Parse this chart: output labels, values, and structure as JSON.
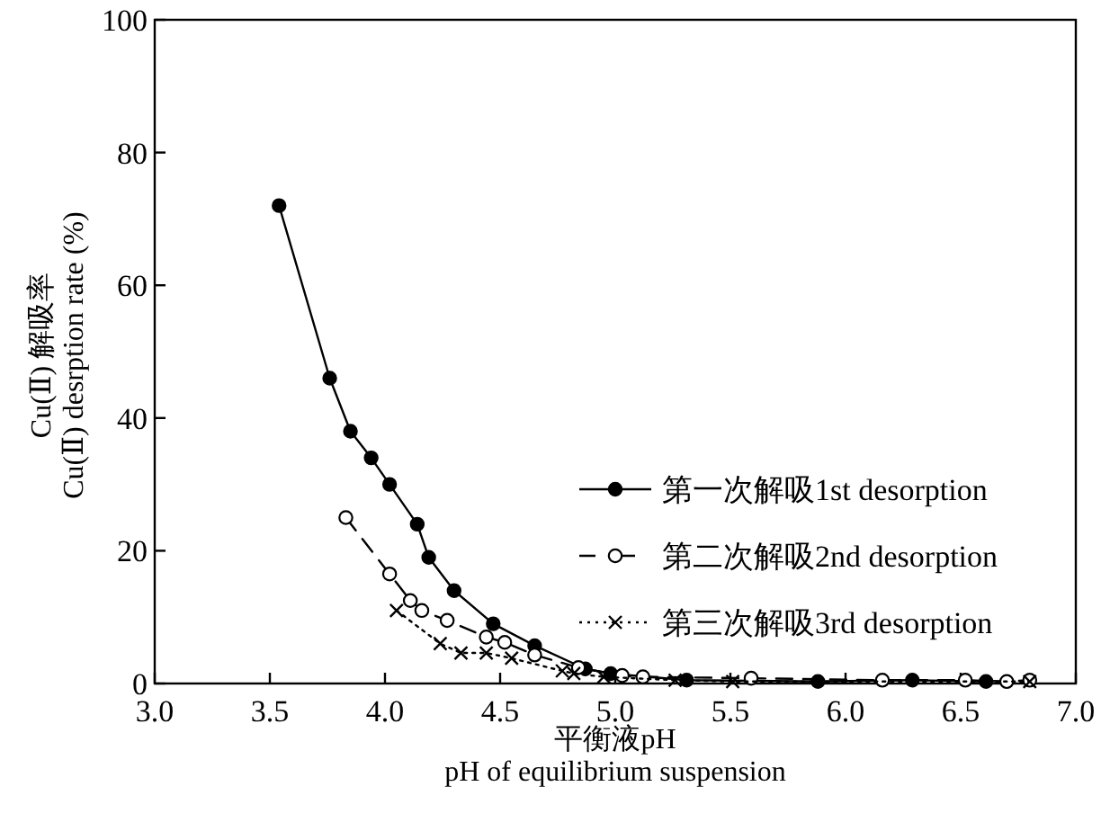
{
  "chart_data": {
    "type": "line",
    "xlabel": "平衡液pH\npH of equilibrium suspension",
    "ylabel": "Cu(Ⅱ) 解吸率\nCu(Ⅱ) desrption rate (%)",
    "xlim": [
      3.0,
      7.0
    ],
    "xticks": [
      {
        "value": 3.0,
        "label": "3.0"
      },
      {
        "value": 3.5,
        "label": "3.5"
      },
      {
        "value": 4.0,
        "label": "4.0"
      },
      {
        "value": 4.5,
        "label": "4.5"
      },
      {
        "value": 5.0,
        "label": "5.0"
      },
      {
        "value": 5.5,
        "label": "5.5"
      },
      {
        "value": 6.0,
        "label": "6.0"
      },
      {
        "value": 6.5,
        "label": "6.5"
      },
      {
        "value": 7.0,
        "label": "7.0"
      }
    ],
    "ylim": [
      0,
      100
    ],
    "yticks": [
      0,
      20,
      40,
      60,
      80,
      100
    ],
    "grid": false,
    "legend": "right",
    "series": [
      {
        "name": "第一次解吸1st desorption",
        "color": "#000000",
        "marker": "circle",
        "line_style": "solid",
        "x": [
          3.54,
          3.76,
          3.85,
          3.94,
          4.02,
          4.14,
          4.19,
          4.3,
          4.47,
          4.65,
          4.87,
          4.98,
          5.31,
          5.88,
          6.29,
          6.61
        ],
        "values": [
          72,
          46,
          38,
          34,
          30,
          24,
          19,
          14,
          9,
          5.7,
          2.2,
          1.5,
          0.5,
          0.3,
          0.5,
          0.3
        ]
      },
      {
        "name": "第二次解吸2nd desorption",
        "color": "#000000",
        "marker": "circle-open",
        "line_style": "dashed",
        "x": [
          3.83,
          4.02,
          4.11,
          4.16,
          4.27,
          4.44,
          4.52,
          4.65,
          4.84,
          5.03,
          5.12,
          5.59,
          6.16,
          6.52,
          6.7,
          6.8
        ],
        "values": [
          25,
          16.5,
          12.5,
          11,
          9.5,
          7,
          6.2,
          4.3,
          2.4,
          1.2,
          1,
          0.8,
          0.5,
          0.5,
          0.3,
          0.5
        ]
      },
      {
        "name": "第三次解吸3rd desorption",
        "color": "#000000",
        "marker": "cross",
        "line_style": "dotted",
        "x": [
          4.05,
          4.24,
          4.33,
          4.44,
          4.55,
          4.77,
          4.82,
          4.95,
          5.26,
          5.51,
          6.8
        ],
        "values": [
          11,
          6,
          4.6,
          4.6,
          3.8,
          1.9,
          1.5,
          1,
          0.5,
          0.3,
          0.3
        ]
      }
    ]
  }
}
